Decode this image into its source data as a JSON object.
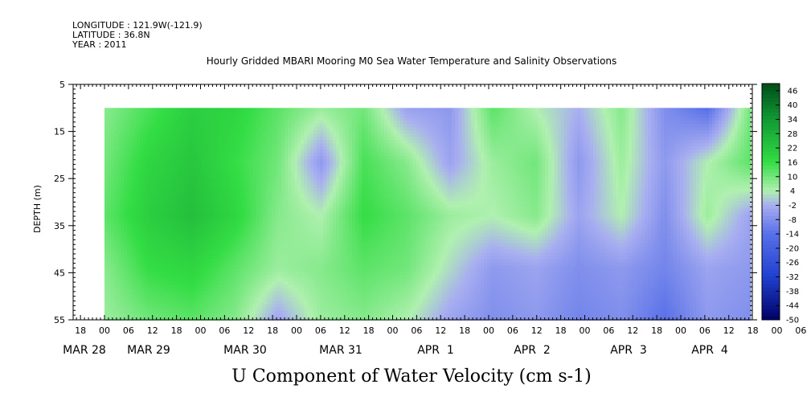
{
  "header": {
    "longitude": "LONGITUDE : 121.9W(-121.9)",
    "latitude": "LATITUDE : 36.8N",
    "year": "YEAR : 2011"
  },
  "chart_data": {
    "type": "heatmap",
    "title": "Hourly Gridded MBARI Mooring M0 Sea Water Temperature and Salinity Observations",
    "xlabel": "",
    "ylabel": "DEPTH (m)",
    "footer_label": "U Component of Water Velocity (cm s-1)",
    "y_ticks": [
      "5",
      "15",
      "25",
      "35",
      "45",
      "55"
    ],
    "ylim": [
      5,
      55
    ],
    "y_inverted": true,
    "x_hour_ticks": [
      "18",
      "00",
      "06",
      "12",
      "18",
      "00",
      "06",
      "12",
      "18",
      "00",
      "06",
      "12",
      "18",
      "00",
      "06",
      "12",
      "18",
      "00",
      "06",
      "12",
      "18",
      "00",
      "06",
      "12",
      "18",
      "00",
      "06",
      "12",
      "18",
      "00",
      "06",
      "12"
    ],
    "x_day_labels": [
      "MAR 28",
      "MAR 29",
      "MAR 30",
      "MAR 31",
      "APR  1",
      "APR  2",
      "APR  3",
      "APR  4"
    ],
    "colorbar_ticks": [
      "46",
      "40",
      "34",
      "28",
      "22",
      "16",
      "10",
      "4",
      "-2",
      "-8",
      "-14",
      "-20",
      "-26",
      "-32",
      "-38",
      "-44",
      "-50"
    ],
    "colorbar_range": [
      -50,
      49
    ],
    "colors": {
      "strong_negative": "#000066",
      "negative": "#2040d0",
      "weak_negative": "#a8aef0",
      "weak_positive": "#b0f0b0",
      "positive": "#33dd44",
      "strong_positive": "#004d1a"
    },
    "data_depth_range_m": [
      10,
      55
    ],
    "time_columns": [
      "MAR 28 00",
      "MAR 28 12",
      "MAR 29 00",
      "MAR 29 12",
      "MAR 30 00",
      "MAR 30 12",
      "MAR 31 00",
      "MAR 31 12",
      "APR 1 00",
      "APR 1 12",
      "APR 2 00",
      "APR 2 12",
      "APR 3 00",
      "APR 3 12",
      "APR 4 00",
      "APR 4 12"
    ],
    "depth_rows_m": [
      10,
      20,
      30,
      40,
      50
    ],
    "values": [
      [
        8,
        14,
        20,
        18,
        12,
        6,
        10,
        -4,
        -6,
        12,
        4,
        -2,
        8,
        -8,
        -14,
        10
      ],
      [
        10,
        18,
        22,
        16,
        10,
        -6,
        14,
        8,
        -4,
        6,
        10,
        -6,
        6,
        -6,
        4,
        12
      ],
      [
        12,
        20,
        24,
        18,
        8,
        4,
        16,
        12,
        6,
        4,
        8,
        -4,
        4,
        -8,
        6,
        -4
      ],
      [
        8,
        16,
        18,
        12,
        6,
        8,
        12,
        10,
        2,
        -6,
        -4,
        -8,
        -6,
        -10,
        -4,
        -6
      ],
      [
        6,
        10,
        12,
        8,
        -4,
        6,
        8,
        4,
        -4,
        -8,
        -6,
        -10,
        -8,
        -14,
        -6,
        -8
      ]
    ]
  }
}
